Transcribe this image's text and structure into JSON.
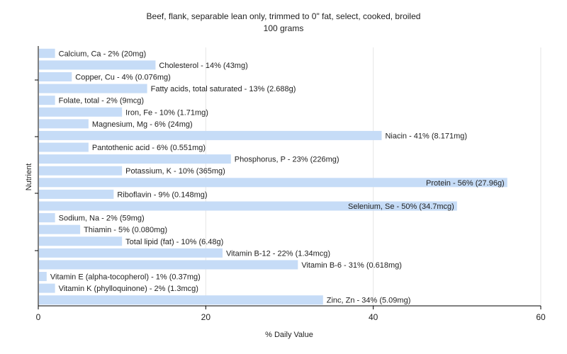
{
  "chart_data": {
    "type": "bar",
    "orientation": "horizontal",
    "title": "Beef, flank, separable lean only, trimmed to 0\" fat, select, cooked, broiled",
    "subtitle": "100 grams",
    "xlabel": "% Daily Value",
    "ylabel": "Nutrient",
    "xlim": [
      0,
      60
    ],
    "xticks": [
      0,
      20,
      40,
      60
    ],
    "grid": true,
    "bar_color": "#c6dcf7",
    "categories": [
      "Calcium, Ca",
      "Cholesterol",
      "Copper, Cu",
      "Fatty acids, total saturated",
      "Folate, total",
      "Iron, Fe",
      "Magnesium, Mg",
      "Niacin",
      "Pantothenic acid",
      "Phosphorus, P",
      "Potassium, K",
      "Protein",
      "Riboflavin",
      "Selenium, Se",
      "Sodium, Na",
      "Thiamin",
      "Total lipid (fat)",
      "Vitamin B-12",
      "Vitamin B-6",
      "Vitamin E (alpha-tocopherol)",
      "Vitamin K (phylloquinone)",
      "Zinc, Zn"
    ],
    "values": [
      2,
      14,
      4,
      13,
      2,
      10,
      6,
      41,
      6,
      23,
      10,
      56,
      9,
      50,
      2,
      5,
      10,
      22,
      31,
      1,
      2,
      34
    ],
    "labels": [
      "Calcium, Ca - 2% (20mg)",
      "Cholesterol - 14% (43mg)",
      "Copper, Cu - 4% (0.076mg)",
      "Fatty acids, total saturated - 13% (2.688g)",
      "Folate, total - 2% (9mcg)",
      "Iron, Fe - 10% (1.71mg)",
      "Magnesium, Mg - 6% (24mg)",
      "Niacin - 41% (8.171mg)",
      "Pantothenic acid - 6% (0.551mg)",
      "Phosphorus, P - 23% (226mg)",
      "Potassium, K - 10% (365mg)",
      "Protein - 56% (27.96g)",
      "Riboflavin - 9% (0.148mg)",
      "Selenium, Se - 50% (34.7mcg)",
      "Sodium, Na - 2% (59mg)",
      "Thiamin - 5% (0.080mg)",
      "Total lipid (fat) - 10% (6.48g)",
      "Vitamin B-12 - 22% (1.34mcg)",
      "Vitamin B-6 - 31% (0.618mg)",
      "Vitamin E (alpha-tocopherol) - 1% (0.37mg)",
      "Vitamin K (phylloquinone) - 2% (1.3mcg)",
      "Zinc, Zn - 34% (5.09mg)"
    ]
  }
}
